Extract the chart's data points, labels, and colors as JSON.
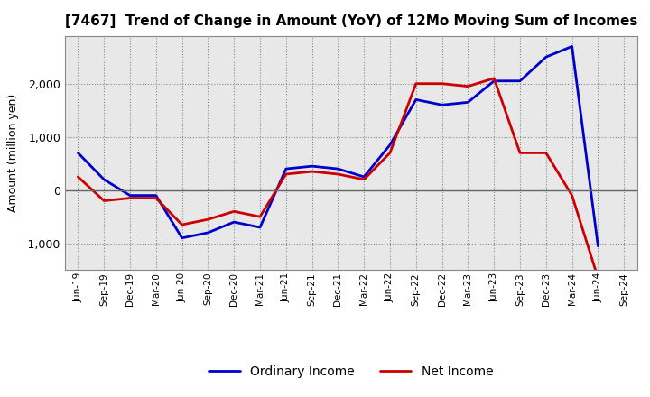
{
  "title": "[7467]  Trend of Change in Amount (YoY) of 12Mo Moving Sum of Incomes",
  "ylabel": "Amount (million yen)",
  "x_labels": [
    "Jun-19",
    "Sep-19",
    "Dec-19",
    "Mar-20",
    "Jun-20",
    "Sep-20",
    "Dec-20",
    "Mar-21",
    "Jun-21",
    "Sep-21",
    "Dec-21",
    "Mar-22",
    "Jun-22",
    "Sep-22",
    "Dec-22",
    "Mar-23",
    "Jun-23",
    "Sep-23",
    "Dec-23",
    "Mar-24",
    "Jun-24",
    "Sep-24"
  ],
  "ordinary_income": [
    700,
    200,
    -100,
    -100,
    -900,
    -800,
    -600,
    -700,
    400,
    450,
    400,
    250,
    850,
    1700,
    1600,
    1650,
    2050,
    2050,
    2500,
    2700,
    -1050,
    null
  ],
  "net_income": [
    250,
    -200,
    -150,
    -150,
    -650,
    -550,
    -400,
    -500,
    300,
    350,
    300,
    200,
    700,
    2000,
    2000,
    1950,
    2100,
    700,
    700,
    -100,
    -1650,
    null
  ],
  "ordinary_income_color": "#0000cc",
  "net_income_color": "#cc0000",
  "ylim": [
    -1500,
    2900
  ],
  "yticks": [
    -1000,
    0,
    1000,
    2000
  ],
  "background_color": "#ffffff",
  "plot_bg_color": "#e8e8e8",
  "grid_color": "#aaaaaa",
  "legend_labels": [
    "Ordinary Income",
    "Net Income"
  ]
}
